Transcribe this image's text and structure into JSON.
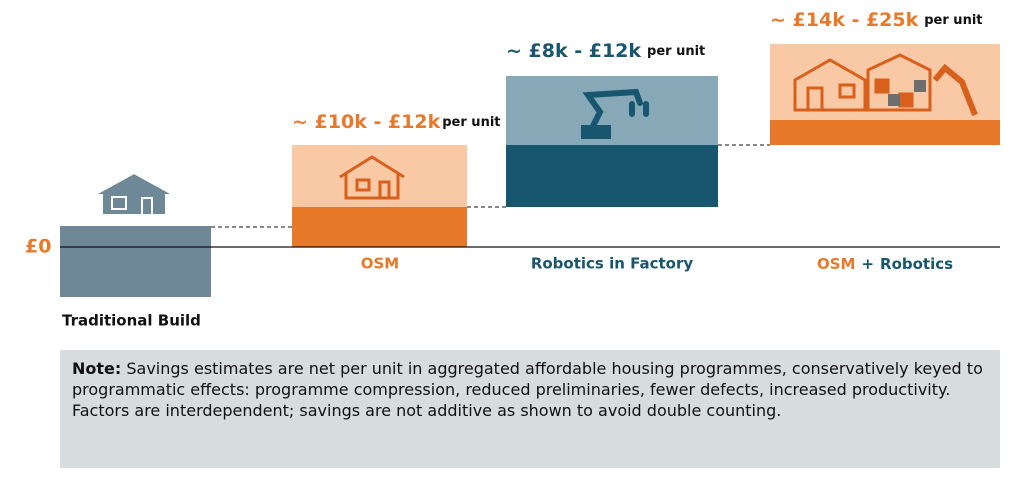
{
  "axis_label": "£0",
  "columns": [
    {
      "label": "Traditional Build"
    },
    {
      "label": "OSM",
      "saving": "~ £10k - £12k",
      "unit": "per unit"
    },
    {
      "label": "Robotics in Factory",
      "saving": "~ £8k - £12k",
      "unit": "per unit"
    },
    {
      "label_parts": [
        "OSM",
        "+",
        "Robotics"
      ],
      "saving": "~ £14k - £25k",
      "unit": "per unit"
    }
  ],
  "note": {
    "label": "Note:",
    "text": "Savings estimates are net per unit in aggregated affordable housing programmes, conservatively keyed to programmatic effects: programme compression, reduced preliminaries, fewer defects, increased productivity. Factors are interdependent; savings are not additive as shown to avoid double counting."
  }
}
